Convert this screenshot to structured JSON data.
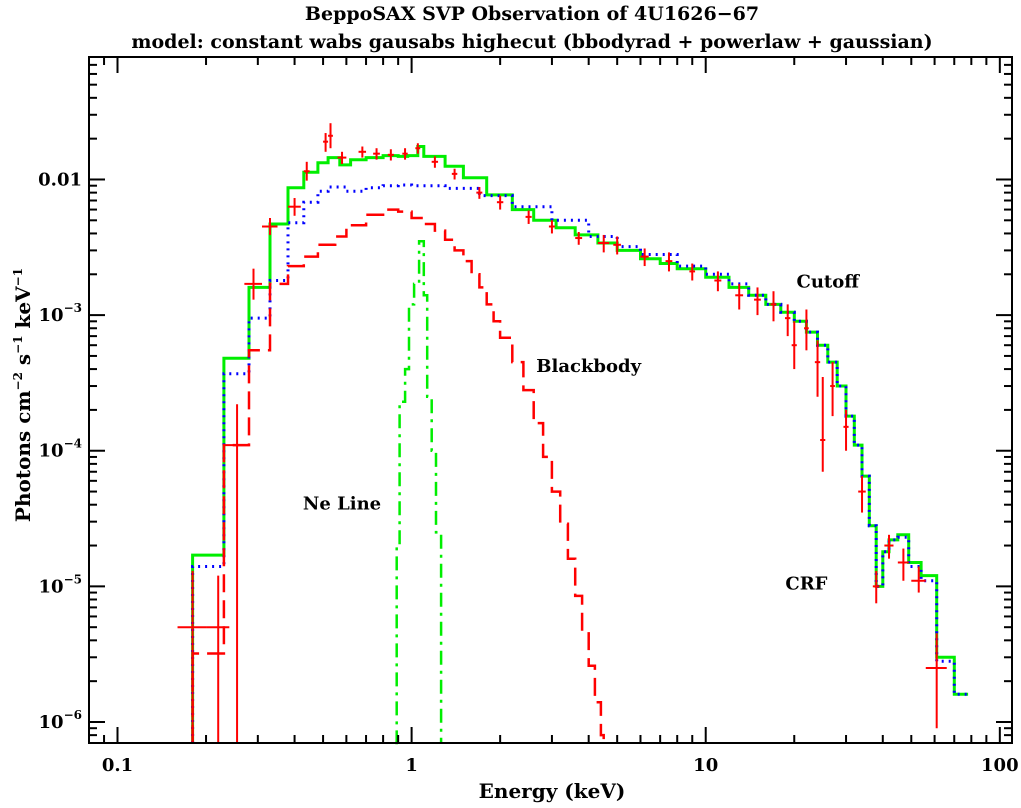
{
  "chart_data": {
    "type": "line",
    "title": "BeppoSAX SVP Observation of 4U1626−67",
    "subtitle": "model: constant wabs gausabs highecut (bbodyrad + powerlaw + gaussian)",
    "xlabel": "Energy (keV)",
    "ylabel_parts": [
      "Photons cm",
      "−2",
      " s",
      "−1",
      " keV",
      "−1"
    ],
    "xscale": "log",
    "yscale": "log",
    "xlim": [
      0.08,
      110
    ],
    "ylim": [
      7e-07,
      0.08
    ],
    "x_ticks": [
      {
        "value": 0.1,
        "label": "0.1"
      },
      {
        "value": 1,
        "label": "1"
      },
      {
        "value": 10,
        "label": "10"
      },
      {
        "value": 100,
        "label": "100"
      }
    ],
    "y_ticks": [
      {
        "value": 0.01,
        "label": "0.01",
        "base": "",
        "exp": ""
      },
      {
        "value": 0.001,
        "label": "",
        "base": "10",
        "exp": "−3"
      },
      {
        "value": 0.0001,
        "label": "",
        "base": "10",
        "exp": "−4"
      },
      {
        "value": 1e-05,
        "label": "",
        "base": "10",
        "exp": "−5"
      },
      {
        "value": 1e-06,
        "label": "",
        "base": "10",
        "exp": "−6"
      }
    ],
    "annotations": [
      {
        "text": "Cutoff",
        "x": 26,
        "y": 0.0016
      },
      {
        "text": "Blackbody",
        "x": 4.0,
        "y": 0.00038
      },
      {
        "text": "Ne Line",
        "x": 0.58,
        "y": 3.7e-05
      },
      {
        "text": "CRF",
        "x": 22,
        "y": 9.5e-06
      }
    ],
    "series": [
      {
        "key": "total",
        "style": "solid",
        "color": "#00ee00",
        "points": [
          [
            0.18,
            1.7e-05
          ],
          [
            0.23,
            0.00048
          ],
          [
            0.28,
            0.0016
          ],
          [
            0.33,
            0.0047
          ],
          [
            0.38,
            0.0087
          ],
          [
            0.43,
            0.0113
          ],
          [
            0.48,
            0.0133
          ],
          [
            0.52,
            0.0145
          ],
          [
            0.57,
            0.0128
          ],
          [
            0.62,
            0.014
          ],
          [
            0.7,
            0.0145
          ],
          [
            0.8,
            0.015
          ],
          [
            0.9,
            0.0148
          ],
          [
            0.97,
            0.015
          ],
          [
            1.05,
            0.0175
          ],
          [
            1.1,
            0.0148
          ],
          [
            1.3,
            0.0125
          ],
          [
            1.5,
            0.0103
          ],
          [
            1.8,
            0.0077
          ],
          [
            2.2,
            0.006
          ],
          [
            2.6,
            0.005
          ],
          [
            3.1,
            0.0044
          ],
          [
            3.6,
            0.0039
          ],
          [
            4.3,
            0.0034
          ],
          [
            5.0,
            0.003
          ],
          [
            6,
            0.0026
          ],
          [
            7,
            0.0024
          ],
          [
            8,
            0.0022
          ],
          [
            10,
            0.0019
          ],
          [
            12,
            0.0016
          ],
          [
            14,
            0.0014
          ],
          [
            16,
            0.0012
          ],
          [
            18,
            0.00105
          ],
          [
            20,
            0.0009
          ],
          [
            22,
            0.00075
          ],
          [
            24,
            0.0006
          ],
          [
            26,
            0.00045
          ],
          [
            28,
            0.0003
          ],
          [
            30,
            0.00018
          ],
          [
            32,
            0.00011
          ],
          [
            34,
            6.5e-05
          ],
          [
            36,
            2.8e-05
          ],
          [
            38,
            1e-05
          ],
          [
            40,
            1.8e-05
          ],
          [
            42,
            2.2e-05
          ],
          [
            45,
            2.4e-05
          ],
          [
            49,
            1.5e-05
          ],
          [
            54,
            1.2e-05
          ],
          [
            61,
            3e-06
          ],
          [
            70,
            1.6e-06
          ],
          [
            78,
            1.6e-06
          ]
        ]
      },
      {
        "key": "powerlaw",
        "style": "dotted",
        "color": "#0000ff",
        "points": [
          [
            0.18,
            1.4e-05
          ],
          [
            0.23,
            0.00037
          ],
          [
            0.28,
            0.00095
          ],
          [
            0.33,
            0.0018
          ],
          [
            0.38,
            0.0048
          ],
          [
            0.43,
            0.0068
          ],
          [
            0.48,
            0.0082
          ],
          [
            0.52,
            0.0088
          ],
          [
            0.6,
            0.0082
          ],
          [
            0.7,
            0.0087
          ],
          [
            0.8,
            0.009
          ],
          [
            0.9,
            0.0091
          ],
          [
            1.0,
            0.009
          ],
          [
            1.3,
            0.0086
          ],
          [
            1.7,
            0.0076
          ],
          [
            2.2,
            0.0063
          ],
          [
            3,
            0.005
          ],
          [
            4,
            0.0038
          ],
          [
            5,
            0.0032
          ],
          [
            6,
            0.0028
          ],
          [
            8,
            0.0023
          ],
          [
            10,
            0.002
          ],
          [
            12,
            0.0017
          ],
          [
            14,
            0.0014
          ],
          [
            16,
            0.0012
          ],
          [
            18,
            0.00105
          ],
          [
            20,
            0.0009
          ],
          [
            22,
            0.00075
          ],
          [
            24,
            0.0006
          ],
          [
            26,
            0.00045
          ],
          [
            28,
            0.0003
          ],
          [
            30,
            0.00018
          ],
          [
            32,
            0.00011
          ],
          [
            34,
            6.5e-05
          ],
          [
            36,
            2.8e-05
          ],
          [
            38,
            1e-05
          ],
          [
            40,
            1.8e-05
          ],
          [
            42,
            2.2e-05
          ],
          [
            45,
            2.3e-05
          ],
          [
            49,
            1.4e-05
          ],
          [
            54,
            1.1e-05
          ],
          [
            61,
            2.8e-06
          ],
          [
            70,
            1.6e-06
          ],
          [
            78,
            1.6e-06
          ]
        ]
      },
      {
        "key": "blackbody",
        "style": "dashed",
        "color": "#ff0000",
        "points": [
          [
            0.18,
            3.2e-06
          ],
          [
            0.23,
            0.00011
          ],
          [
            0.28,
            0.00055
          ],
          [
            0.33,
            0.0017
          ],
          [
            0.38,
            0.0023
          ],
          [
            0.43,
            0.0027
          ],
          [
            0.48,
            0.0033
          ],
          [
            0.55,
            0.0038
          ],
          [
            0.6,
            0.0046
          ],
          [
            0.7,
            0.0055
          ],
          [
            0.8,
            0.006
          ],
          [
            0.9,
            0.0058
          ],
          [
            1.0,
            0.0052
          ],
          [
            1.1,
            0.0047
          ],
          [
            1.2,
            0.0042
          ],
          [
            1.3,
            0.0036
          ],
          [
            1.4,
            0.003
          ],
          [
            1.5,
            0.0025
          ],
          [
            1.6,
            0.002
          ],
          [
            1.7,
            0.0016
          ],
          [
            1.8,
            0.0012
          ],
          [
            1.9,
            0.0009
          ],
          [
            2.0,
            0.00068
          ],
          [
            2.2,
            0.00045
          ],
          [
            2.4,
            0.00028
          ],
          [
            2.6,
            0.00016
          ],
          [
            2.8,
            9e-05
          ],
          [
            3.0,
            5e-05
          ],
          [
            3.2,
            2.9e-05
          ],
          [
            3.4,
            1.6e-05
          ],
          [
            3.6,
            8.5e-06
          ],
          [
            3.8,
            4.6e-06
          ],
          [
            4.0,
            2.6e-06
          ],
          [
            4.2,
            1.4e-06
          ],
          [
            4.4,
            8e-07
          ],
          [
            4.5,
            7e-07
          ]
        ]
      },
      {
        "key": "neline",
        "style": "dashdot",
        "color": "#00ee00",
        "points": [
          [
            0.88,
            7e-07
          ],
          [
            0.89,
            2e-05
          ],
          [
            0.91,
            0.00023
          ],
          [
            0.95,
            0.0004
          ],
          [
            0.98,
            0.0012
          ],
          [
            1.02,
            0.0017
          ],
          [
            1.06,
            0.0035
          ],
          [
            1.1,
            0.0014
          ],
          [
            1.13,
            0.00025
          ],
          [
            1.17,
            0.0001
          ],
          [
            1.21,
            2.5e-05
          ],
          [
            1.26,
            7e-07
          ]
        ]
      }
    ],
    "data_points": [
      [
        0.18,
        5e-06,
        0.16,
        0.2,
        7e-07,
        1.3e-05
      ],
      [
        0.22,
        5e-06,
        0.2,
        0.24,
        7e-07,
        1.2e-05
      ],
      [
        0.255,
        0.00011,
        0.23,
        0.28,
        7e-07,
        0.00022
      ],
      [
        0.29,
        0.0017,
        0.27,
        0.31,
        0.0013,
        0.0022
      ],
      [
        0.33,
        0.0045,
        0.31,
        0.35,
        0.0039,
        0.0052
      ],
      [
        0.4,
        0.0063,
        0.38,
        0.42,
        0.0054,
        0.0073
      ],
      [
        0.44,
        0.0115,
        0.43,
        0.45,
        0.0098,
        0.0135
      ],
      [
        0.51,
        0.019,
        0.5,
        0.52,
        0.016,
        0.022
      ],
      [
        0.53,
        0.021,
        0.52,
        0.54,
        0.017,
        0.026
      ],
      [
        0.58,
        0.0145,
        0.56,
        0.6,
        0.013,
        0.016
      ],
      [
        0.68,
        0.016,
        0.66,
        0.7,
        0.0145,
        0.0175
      ],
      [
        0.76,
        0.0155,
        0.74,
        0.78,
        0.014,
        0.017
      ],
      [
        0.85,
        0.0152,
        0.83,
        0.87,
        0.0138,
        0.0167
      ],
      [
        0.95,
        0.0155,
        0.93,
        0.97,
        0.014,
        0.017
      ],
      [
        1.05,
        0.017,
        1.03,
        1.07,
        0.0155,
        0.0185
      ],
      [
        1.2,
        0.0135,
        1.17,
        1.23,
        0.0122,
        0.0148
      ],
      [
        1.4,
        0.011,
        1.37,
        1.43,
        0.01,
        0.012
      ],
      [
        1.7,
        0.008,
        1.66,
        1.74,
        0.0072,
        0.0088
      ],
      [
        2.0,
        0.0068,
        1.95,
        2.05,
        0.006,
        0.0076
      ],
      [
        2.5,
        0.0053,
        2.44,
        2.56,
        0.0047,
        0.0059
      ],
      [
        3.0,
        0.0045,
        2.93,
        3.07,
        0.004,
        0.005
      ],
      [
        3.7,
        0.0037,
        3.6,
        3.8,
        0.0033,
        0.0041
      ],
      [
        4.5,
        0.0034,
        4.3,
        4.7,
        0.0029,
        0.0039
      ],
      [
        5.0,
        0.0033,
        4.85,
        5.15,
        0.0028,
        0.0038
      ],
      [
        6.2,
        0.0027,
        6.0,
        6.4,
        0.0023,
        0.0031
      ],
      [
        7.5,
        0.0025,
        7.3,
        7.7,
        0.0021,
        0.0029
      ],
      [
        9,
        0.0021,
        8.8,
        9.2,
        0.0018,
        0.0024
      ],
      [
        11,
        0.0018,
        10.7,
        11.3,
        0.0015,
        0.0021
      ],
      [
        13,
        0.0014,
        12.6,
        13.4,
        0.0011,
        0.0017
      ],
      [
        15,
        0.0013,
        14.6,
        15.4,
        0.001,
        0.0016
      ],
      [
        17,
        0.0012,
        16.6,
        17.4,
        0.0009,
        0.0015
      ],
      [
        19,
        0.00095,
        18.6,
        19.4,
        0.0007,
        0.0012
      ],
      [
        20,
        0.0006,
        19.6,
        20.4,
        0.0004,
        0.0009
      ],
      [
        22,
        0.0008,
        21.6,
        22.4,
        0.00055,
        0.0011
      ],
      [
        24,
        0.00045,
        23.5,
        24.5,
        0.00025,
        0.00065
      ],
      [
        25,
        0.00012,
        24.5,
        25.5,
        7e-05,
        0.00035
      ],
      [
        27,
        0.0003,
        26.5,
        27.5,
        0.00018,
        0.00045
      ],
      [
        30,
        0.00015,
        29.4,
        30.6,
        0.0001,
        0.0002
      ],
      [
        34,
        5e-05,
        33,
        35,
        3.5e-05,
        6.5e-05
      ],
      [
        38,
        1e-05,
        37,
        39,
        7.5e-06,
        1.3e-05
      ],
      [
        42,
        2e-05,
        40.5,
        43.5,
        1.6e-05,
        2.4e-05
      ],
      [
        47,
        1.5e-05,
        45,
        49,
        1.1e-05,
        1.9e-05
      ],
      [
        53,
        1.1e-05,
        50,
        56,
        9e-06,
        1.4e-05
      ],
      [
        61,
        2.5e-06,
        56,
        66,
        9e-07,
        4.5e-06
      ]
    ]
  }
}
